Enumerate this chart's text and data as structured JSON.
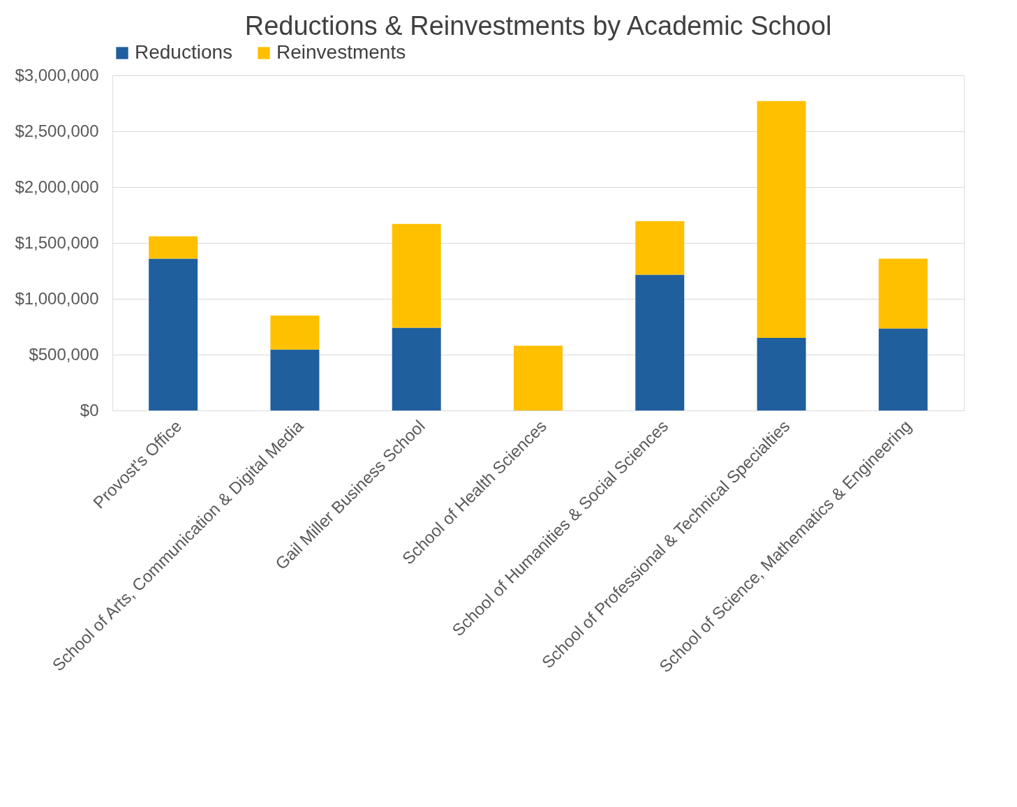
{
  "chart_data": {
    "type": "bar",
    "title": "Reductions & Reinvestments by Academic School",
    "stacked": true,
    "categories": [
      "Provost's Office",
      "School of Arts, Communication & Digital Media",
      "Gail Miller Business School",
      "School of Health Sciences",
      "School of Humanities & Social Sciences",
      "School of Professional & Technical Specialties",
      "School of Science, Mathematics & Engineering"
    ],
    "series": [
      {
        "name": "Reductions",
        "color": "#1f5f9e",
        "values": [
          1360000,
          545000,
          740000,
          0,
          1215000,
          650000,
          735000
        ]
      },
      {
        "name": "Reinvestments",
        "color": "#ffc000",
        "values": [
          200000,
          305000,
          930000,
          580000,
          480000,
          2120000,
          625000
        ]
      }
    ],
    "ylim": [
      0,
      3000000
    ],
    "yticks": [
      {
        "value": 0,
        "label": "$0"
      },
      {
        "value": 500000,
        "label": "$500,000"
      },
      {
        "value": 1000000,
        "label": "$1,000,000"
      },
      {
        "value": 1500000,
        "label": "$1,500,000"
      },
      {
        "value": 2000000,
        "label": "$2,000,000"
      },
      {
        "value": 2500000,
        "label": "$2,500,000"
      },
      {
        "value": 3000000,
        "label": "$3,000,000"
      }
    ],
    "grid": "y",
    "legend": "top"
  }
}
